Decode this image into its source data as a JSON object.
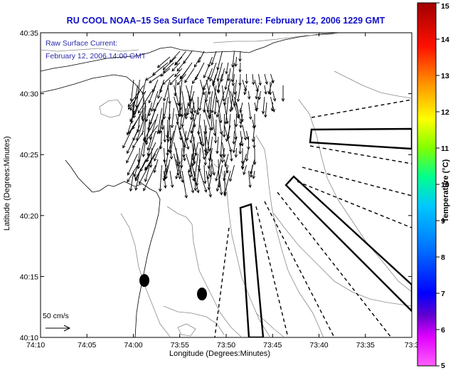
{
  "title": "RU COOL  NOAA–15  Sea Surface Temperature:  February 12, 2006 1229 GMT",
  "current_label": "Raw Surface Current:",
  "current_time": "February 12, 2006 14:00 GMT",
  "scale_label": "50 cm/s",
  "x_axis": {
    "label": "Longitude (Degrees:Minutes)",
    "ticks": [
      "74:10",
      "74:05",
      "74:00",
      "73:55",
      "73:50",
      "73:45",
      "73:40",
      "73:35",
      "73:3"
    ]
  },
  "y_axis": {
    "label": "Latitude (Degrees:Minutes)",
    "ticks": [
      "40:35",
      "40:30",
      "40:25",
      "40:20",
      "40:15",
      "40:10"
    ]
  },
  "colorbar": {
    "label": "Temperature (°C)",
    "min": 5,
    "max": 15,
    "ticks": [
      "15",
      "14",
      "13",
      "12",
      "11",
      "10",
      "9",
      "8",
      "7",
      "6",
      "5"
    ],
    "colors": [
      "#ff00ff",
      "#6a00d8",
      "#0000ff",
      "#0090ff",
      "#00e0e0",
      "#00ff80",
      "#a0ff00",
      "#ffff00",
      "#ffa000",
      "#ff2000",
      "#b00000"
    ]
  },
  "markers": [
    {
      "name": "station-marker-west"
    },
    {
      "name": "station-marker-east"
    }
  ]
}
